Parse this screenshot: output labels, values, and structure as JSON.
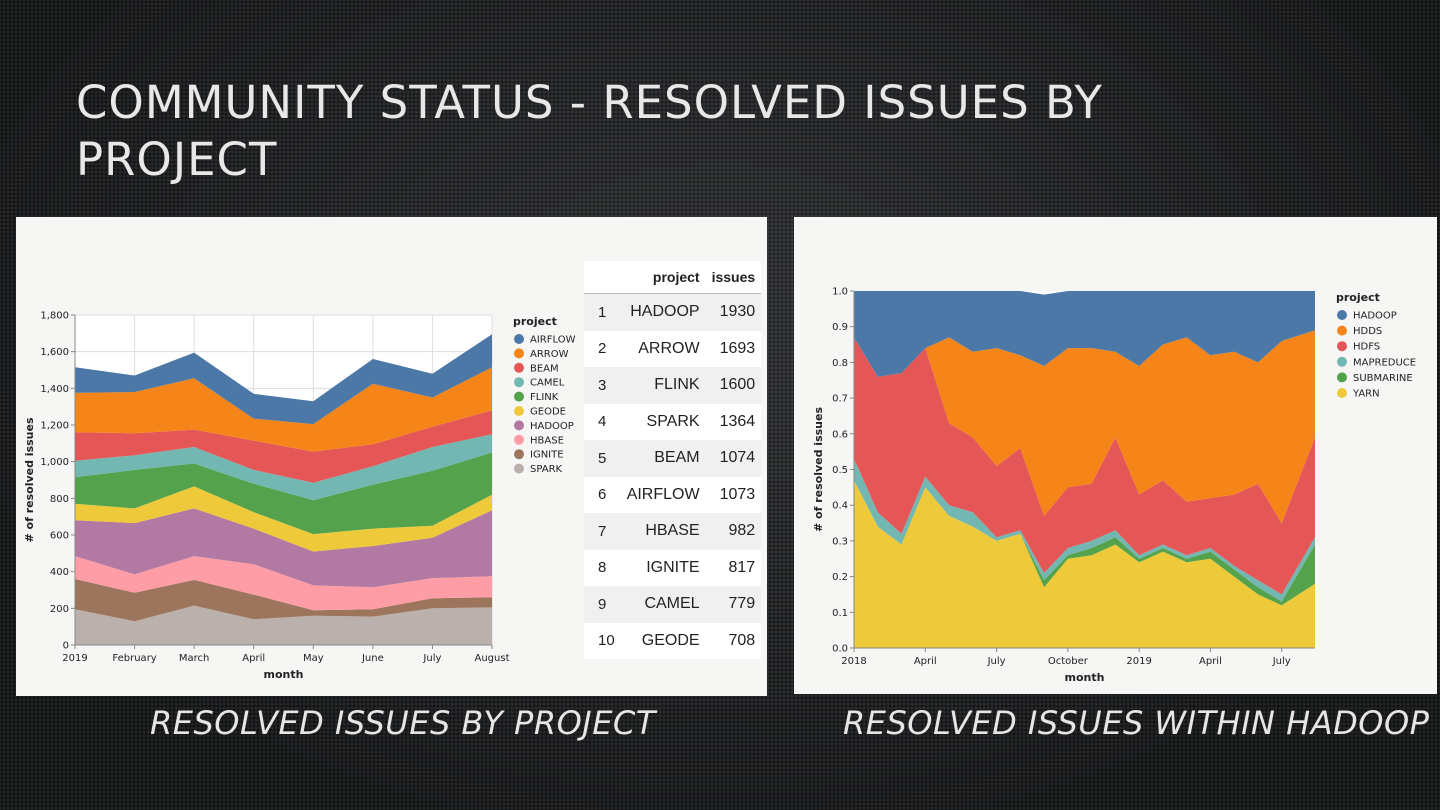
{
  "slide": {
    "title": "COMMUNITY STATUS  - RESOLVED ISSUES BY PROJECT",
    "caption_left": "RESOLVED ISSUES BY PROJECT",
    "caption_right": "RESOLVED ISSUES WITHIN HADOOP"
  },
  "chart_data": [
    {
      "type": "area",
      "stacked": true,
      "title": "",
      "xlabel": "month",
      "ylabel": "# of resolved issues",
      "ylim": [
        0,
        1800
      ],
      "yticks": [
        0,
        200,
        400,
        600,
        800,
        1000,
        1200,
        1400,
        1600,
        1800
      ],
      "ytick_labels": [
        "0",
        "200",
        "400",
        "600",
        "800",
        "1,000",
        "1,200",
        "1,400",
        "1,600",
        "1,800"
      ],
      "categories": [
        "2019",
        "February",
        "March",
        "April",
        "May",
        "June",
        "July",
        "August"
      ],
      "legend_title": "project",
      "legend_position": "right",
      "grid": true,
      "stack_order": [
        "SPARK",
        "IGNITE",
        "HBASE",
        "HADOOP",
        "GEODE",
        "FLINK",
        "CAMEL",
        "BEAM",
        "ARROW",
        "AIRFLOW"
      ],
      "legend_order": [
        "AIRFLOW",
        "ARROW",
        "BEAM",
        "CAMEL",
        "FLINK",
        "GEODE",
        "HADOOP",
        "HBASE",
        "IGNITE",
        "SPARK"
      ],
      "series": [
        {
          "name": "SPARK",
          "color": "#bab0ac",
          "values": [
            195,
            130,
            215,
            140,
            160,
            155,
            200,
            205
          ]
        },
        {
          "name": "IGNITE",
          "color": "#9d755d",
          "values": [
            165,
            155,
            140,
            135,
            30,
            40,
            55,
            55
          ]
        },
        {
          "name": "HBASE",
          "color": "#ff9da6",
          "values": [
            125,
            100,
            130,
            165,
            135,
            120,
            110,
            115
          ]
        },
        {
          "name": "HADOOP",
          "color": "#b279a2",
          "values": [
            195,
            280,
            260,
            195,
            185,
            225,
            220,
            360
          ]
        },
        {
          "name": "GEODE",
          "color": "#eeca3b",
          "values": [
            90,
            80,
            120,
            90,
            95,
            95,
            65,
            85
          ]
        },
        {
          "name": "FLINK",
          "color": "#54a24b",
          "values": [
            145,
            210,
            125,
            155,
            185,
            240,
            300,
            230
          ]
        },
        {
          "name": "CAMEL",
          "color": "#72b7b2",
          "values": [
            90,
            80,
            90,
            75,
            95,
            100,
            130,
            100
          ]
        },
        {
          "name": "BEAM",
          "color": "#e45756",
          "values": [
            155,
            120,
            95,
            160,
            170,
            120,
            110,
            130
          ]
        },
        {
          "name": "ARROW",
          "color": "#f58518",
          "values": [
            215,
            225,
            280,
            120,
            150,
            330,
            160,
            235
          ]
        },
        {
          "name": "AIRFLOW",
          "color": "#4c78a8",
          "values": [
            140,
            90,
            140,
            135,
            125,
            135,
            130,
            180
          ]
        }
      ]
    },
    {
      "type": "area",
      "stacked": true,
      "normalized": true,
      "title": "",
      "xlabel": "month",
      "ylabel": "# of resolved issues",
      "ylim": [
        0,
        1.0
      ],
      "yticks": [
        0.0,
        0.1,
        0.2,
        0.3,
        0.4,
        0.5,
        0.6,
        0.7,
        0.8,
        0.9,
        1.0
      ],
      "ytick_labels": [
        "0.0",
        "0.1",
        "0.2",
        "0.3",
        "0.4",
        "0.5",
        "0.6",
        "0.7",
        "0.8",
        "0.9",
        "1.0"
      ],
      "x_tick_labels": [
        "2018",
        "April",
        "July",
        "October",
        "2019",
        "April",
        "July"
      ],
      "x_tick_index": [
        0,
        3,
        6,
        9,
        12,
        15,
        18
      ],
      "x_domain": [
        0,
        19.4
      ],
      "x": [
        0,
        1,
        2,
        3,
        4,
        5,
        6,
        7,
        8,
        9,
        10,
        11,
        12,
        13,
        14,
        15,
        16,
        17,
        18,
        19.4
      ],
      "legend_title": "project",
      "legend_position": "right",
      "stack_order": [
        "YARN",
        "SUBMARINE",
        "MAPREDUCE",
        "HDFS",
        "HDDS",
        "HADOOP"
      ],
      "legend_order": [
        "HADOOP",
        "HDDS",
        "HDFS",
        "MAPREDUCE",
        "SUBMARINE",
        "YARN"
      ],
      "series": [
        {
          "name": "YARN",
          "color": "#eeca3b",
          "values": [
            0.47,
            0.34,
            0.29,
            0.45,
            0.37,
            0.34,
            0.3,
            0.32,
            0.17,
            0.25,
            0.26,
            0.29,
            0.24,
            0.27,
            0.24,
            0.25,
            0.2,
            0.15,
            0.12,
            0.18
          ]
        },
        {
          "name": "SUBMARINE",
          "color": "#54a24b",
          "values": [
            0,
            0,
            0,
            0,
            0,
            0,
            0,
            0,
            0.02,
            0.01,
            0.02,
            0.02,
            0.01,
            0.01,
            0.01,
            0.02,
            0.02,
            0.02,
            0.01,
            0.11
          ]
        },
        {
          "name": "MAPREDUCE",
          "color": "#72b7b2",
          "values": [
            0.06,
            0.04,
            0.03,
            0.03,
            0.03,
            0.04,
            0.01,
            0.01,
            0.02,
            0.02,
            0.02,
            0.02,
            0.01,
            0.01,
            0.01,
            0.01,
            0.01,
            0.02,
            0.02,
            0.02
          ]
        },
        {
          "name": "HDFS",
          "color": "#e45756",
          "values": [
            0.34,
            0.38,
            0.45,
            0.36,
            0.23,
            0.21,
            0.2,
            0.23,
            0.16,
            0.17,
            0.16,
            0.26,
            0.17,
            0.18,
            0.15,
            0.14,
            0.2,
            0.27,
            0.2,
            0.28
          ]
        },
        {
          "name": "HDDS",
          "color": "#f58518",
          "values": [
            0,
            0,
            0,
            0,
            0.24,
            0.24,
            0.33,
            0.26,
            0.42,
            0.39,
            0.38,
            0.24,
            0.36,
            0.38,
            0.46,
            0.4,
            0.4,
            0.34,
            0.51,
            0.3
          ]
        },
        {
          "name": "HADOOP",
          "color": "#4c78a8",
          "values": [
            0.13,
            0.24,
            0.23,
            0.16,
            0.13,
            0.17,
            0.16,
            0.18,
            0.2,
            0.16,
            0.16,
            0.17,
            0.21,
            0.15,
            0.13,
            0.18,
            0.17,
            0.2,
            0.14,
            0.11
          ]
        }
      ]
    }
  ],
  "table": {
    "headers": [
      "",
      "project",
      "issues"
    ],
    "rows": [
      {
        "rank": "1",
        "project": "HADOOP",
        "issues": "1930"
      },
      {
        "rank": "2",
        "project": "ARROW",
        "issues": "1693"
      },
      {
        "rank": "3",
        "project": "FLINK",
        "issues": "1600"
      },
      {
        "rank": "4",
        "project": "SPARK",
        "issues": "1364"
      },
      {
        "rank": "5",
        "project": "BEAM",
        "issues": "1074"
      },
      {
        "rank": "6",
        "project": "AIRFLOW",
        "issues": "1073"
      },
      {
        "rank": "7",
        "project": "HBASE",
        "issues": "982"
      },
      {
        "rank": "8",
        "project": "IGNITE",
        "issues": "817"
      },
      {
        "rank": "9",
        "project": "CAMEL",
        "issues": "779"
      },
      {
        "rank": "10",
        "project": "GEODE",
        "issues": "708"
      }
    ]
  }
}
